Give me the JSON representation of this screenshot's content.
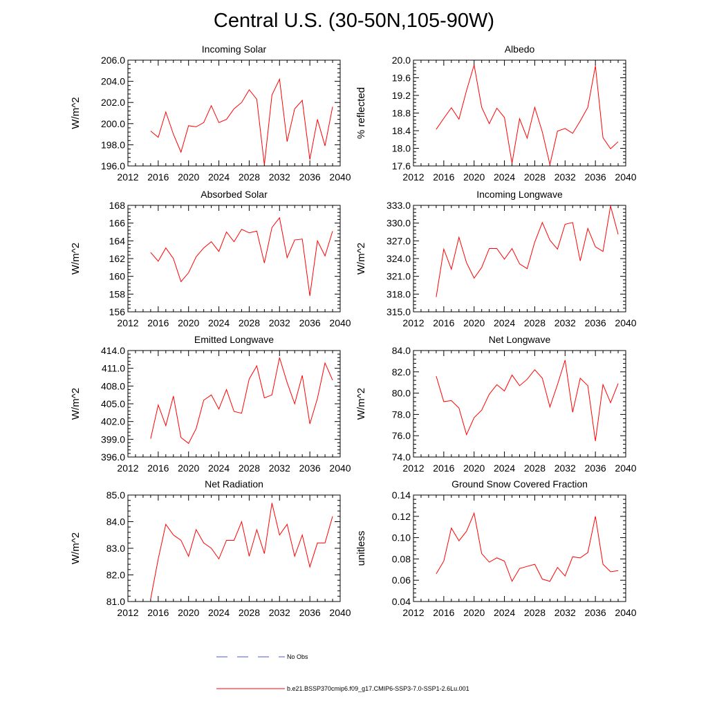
{
  "title": "Central U.S. (30-50N,105-90W)",
  "colors": {
    "model": "#ff0000",
    "obs": "#4a5bd4",
    "axis": "#000000"
  },
  "legend": {
    "obs_label": "No Obs",
    "model_label": "b.e21.BSSP370cmip6.f09_g17.CMIP6-SSP3-7.0-SSP1-2.6Lu.001"
  },
  "chart_data": [
    {
      "type": "line",
      "title": "Incoming Solar",
      "ylabel": "W/m^2",
      "xlim": [
        2012,
        2040
      ],
      "xticks": [
        "2012",
        "2016",
        "2020",
        "2024",
        "2028",
        "2032",
        "2036",
        "2040"
      ],
      "ylim": [
        196,
        206
      ],
      "yticks": [
        "196.0",
        "198.0",
        "200.0",
        "202.0",
        "204.0",
        "206.0"
      ],
      "x": [
        2015,
        2016,
        2017,
        2018,
        2019,
        2020,
        2021,
        2022,
        2023,
        2024,
        2025,
        2026,
        2027,
        2028,
        2029,
        2030,
        2031,
        2032,
        2033,
        2034,
        2035,
        2036,
        2037,
        2038,
        2039
      ],
      "series": [
        {
          "values": [
            199.3,
            198.7,
            201.1,
            199.0,
            197.3,
            199.8,
            199.7,
            200.1,
            201.7,
            200.1,
            200.4,
            201.4,
            202.0,
            203.2,
            202.3,
            196.1,
            202.7,
            204.2,
            198.3,
            201.4,
            202.2,
            196.6,
            200.4,
            197.9,
            201.6
          ]
        }
      ]
    },
    {
      "type": "line",
      "title": "Albedo",
      "ylabel": "% reflected",
      "xlim": [
        2012,
        2040
      ],
      "xticks": [
        "2012",
        "2016",
        "2020",
        "2024",
        "2028",
        "2032",
        "2036",
        "2040"
      ],
      "ylim": [
        17.6,
        20.0
      ],
      "yticks": [
        "17.6",
        "18.0",
        "18.4",
        "18.8",
        "19.2",
        "19.6",
        "20.0"
      ],
      "x": [
        2015,
        2016,
        2017,
        2018,
        2019,
        2020,
        2021,
        2022,
        2023,
        2024,
        2025,
        2026,
        2027,
        2028,
        2029,
        2030,
        2031,
        2032,
        2033,
        2034,
        2035,
        2036,
        2037,
        2038,
        2039
      ],
      "series": [
        {
          "values": [
            18.43,
            18.68,
            18.92,
            18.66,
            19.31,
            19.89,
            18.93,
            18.56,
            18.91,
            18.7,
            17.66,
            18.67,
            18.23,
            18.93,
            18.37,
            17.63,
            18.39,
            18.45,
            18.34,
            18.62,
            18.93,
            19.87,
            18.24,
            17.99,
            18.15
          ]
        }
      ]
    },
    {
      "type": "line",
      "title": "Absorbed Solar",
      "ylabel": "W/m^2",
      "xlim": [
        2012,
        2040
      ],
      "xticks": [
        "2012",
        "2016",
        "2020",
        "2024",
        "2028",
        "2032",
        "2036",
        "2040"
      ],
      "ylim": [
        156,
        168
      ],
      "yticks": [
        "156",
        "158",
        "160",
        "162",
        "164",
        "166",
        "168"
      ],
      "x": [
        2015,
        2016,
        2017,
        2018,
        2019,
        2020,
        2021,
        2022,
        2023,
        2024,
        2025,
        2026,
        2027,
        2028,
        2029,
        2030,
        2031,
        2032,
        2033,
        2034,
        2035,
        2036,
        2037,
        2038,
        2039
      ],
      "series": [
        {
          "values": [
            162.7,
            161.7,
            163.2,
            162.0,
            159.4,
            160.4,
            162.2,
            163.2,
            163.9,
            162.8,
            165.0,
            163.9,
            165.3,
            164.9,
            165.1,
            161.5,
            165.5,
            166.6,
            162.1,
            164.1,
            164.2,
            157.8,
            164.0,
            162.3,
            165.1
          ]
        }
      ]
    },
    {
      "type": "line",
      "title": "Incoming Longwave",
      "ylabel": "W/m^2",
      "xlim": [
        2012,
        2040
      ],
      "xticks": [
        "2012",
        "2016",
        "2020",
        "2024",
        "2028",
        "2032",
        "2036",
        "2040"
      ],
      "ylim": [
        315,
        333
      ],
      "yticks": [
        "315.0",
        "318.0",
        "321.0",
        "324.0",
        "327.0",
        "330.0",
        "333.0"
      ],
      "x": [
        2015,
        2016,
        2017,
        2018,
        2019,
        2020,
        2021,
        2022,
        2023,
        2024,
        2025,
        2026,
        2027,
        2028,
        2029,
        2030,
        2031,
        2032,
        2033,
        2034,
        2035,
        2036,
        2037,
        2038,
        2039
      ],
      "series": [
        {
          "values": [
            317.5,
            325.6,
            322.2,
            327.6,
            323.3,
            320.7,
            322.5,
            325.7,
            325.7,
            323.9,
            325.7,
            323.1,
            322.3,
            326.8,
            330.1,
            327.1,
            325.6,
            329.8,
            330.1,
            323.6,
            329.1,
            326.0,
            325.2,
            332.9,
            328.1
          ]
        }
      ]
    },
    {
      "type": "line",
      "title": "Emitted Longwave",
      "ylabel": "W/m^2",
      "xlim": [
        2012,
        2040
      ],
      "xticks": [
        "2012",
        "2016",
        "2020",
        "2024",
        "2028",
        "2032",
        "2036",
        "2040"
      ],
      "ylim": [
        396,
        414
      ],
      "yticks": [
        "396.0",
        "399.0",
        "402.0",
        "405.0",
        "408.0",
        "411.0",
        "414.0"
      ],
      "x": [
        2015,
        2016,
        2017,
        2018,
        2019,
        2020,
        2021,
        2022,
        2023,
        2024,
        2025,
        2026,
        2027,
        2028,
        2029,
        2030,
        2031,
        2032,
        2033,
        2034,
        2035,
        2036,
        2037,
        2038,
        2039
      ],
      "series": [
        {
          "values": [
            399.1,
            404.8,
            401.3,
            406.3,
            399.3,
            398.3,
            400.8,
            405.6,
            406.5,
            404.1,
            407.4,
            403.7,
            403.4,
            409.2,
            411.4,
            406.0,
            406.5,
            412.8,
            408.6,
            405.0,
            409.8,
            401.6,
            405.9,
            411.9,
            409.0
          ]
        }
      ]
    },
    {
      "type": "line",
      "title": "Net Longwave",
      "ylabel": "W/m^2",
      "xlim": [
        2012,
        2040
      ],
      "xticks": [
        "2012",
        "2016",
        "2020",
        "2024",
        "2028",
        "2032",
        "2036",
        "2040"
      ],
      "ylim": [
        74,
        84
      ],
      "yticks": [
        "74.0",
        "76.0",
        "78.0",
        "80.0",
        "82.0",
        "84.0"
      ],
      "x": [
        2015,
        2016,
        2017,
        2018,
        2019,
        2020,
        2021,
        2022,
        2023,
        2024,
        2025,
        2026,
        2027,
        2028,
        2029,
        2030,
        2031,
        2032,
        2033,
        2034,
        2035,
        2036,
        2037,
        2038,
        2039
      ],
      "series": [
        {
          "values": [
            81.6,
            79.2,
            79.3,
            78.6,
            76.1,
            77.7,
            78.4,
            79.9,
            80.8,
            80.2,
            81.7,
            80.7,
            81.3,
            82.2,
            81.4,
            78.7,
            80.8,
            83.1,
            78.2,
            81.4,
            80.7,
            75.5,
            80.8,
            79.1,
            80.9
          ]
        }
      ]
    },
    {
      "type": "line",
      "title": "Net Radiation",
      "ylabel": "W/m^2",
      "xlim": [
        2012,
        2040
      ],
      "xticks": [
        "2012",
        "2016",
        "2020",
        "2024",
        "2028",
        "2032",
        "2036",
        "2040"
      ],
      "ylim": [
        81,
        85
      ],
      "yticks": [
        "81.0",
        "82.0",
        "83.0",
        "84.0",
        "85.0"
      ],
      "x": [
        2015,
        2016,
        2017,
        2018,
        2019,
        2020,
        2021,
        2022,
        2023,
        2024,
        2025,
        2026,
        2027,
        2028,
        2029,
        2030,
        2031,
        2032,
        2033,
        2034,
        2035,
        2036,
        2037,
        2038,
        2039
      ],
      "series": [
        {
          "values": [
            81.1,
            82.6,
            83.9,
            83.5,
            83.3,
            82.7,
            83.7,
            83.2,
            83.0,
            82.6,
            83.3,
            83.3,
            84.0,
            82.7,
            83.7,
            82.8,
            84.7,
            83.5,
            83.9,
            82.7,
            83.5,
            82.3,
            83.2,
            83.2,
            84.2
          ]
        }
      ]
    },
    {
      "type": "line",
      "title": "Ground Snow Covered Fraction",
      "ylabel": "unitless",
      "xlim": [
        2012,
        2040
      ],
      "xticks": [
        "2012",
        "2016",
        "2020",
        "2024",
        "2028",
        "2032",
        "2036",
        "2040"
      ],
      "ylim": [
        0.04,
        0.14
      ],
      "yticks": [
        "0.04",
        "0.06",
        "0.08",
        "0.10",
        "0.12",
        "0.14"
      ],
      "x": [
        2015,
        2016,
        2017,
        2018,
        2019,
        2020,
        2021,
        2022,
        2023,
        2024,
        2025,
        2026,
        2027,
        2028,
        2029,
        2030,
        2031,
        2032,
        2033,
        2034,
        2035,
        2036,
        2037,
        2038,
        2039
      ],
      "series": [
        {
          "values": [
            0.066,
            0.078,
            0.109,
            0.097,
            0.106,
            0.123,
            0.085,
            0.077,
            0.081,
            0.078,
            0.059,
            0.071,
            0.073,
            0.075,
            0.061,
            0.059,
            0.072,
            0.064,
            0.082,
            0.081,
            0.086,
            0.12,
            0.075,
            0.068,
            0.069
          ]
        }
      ]
    }
  ]
}
